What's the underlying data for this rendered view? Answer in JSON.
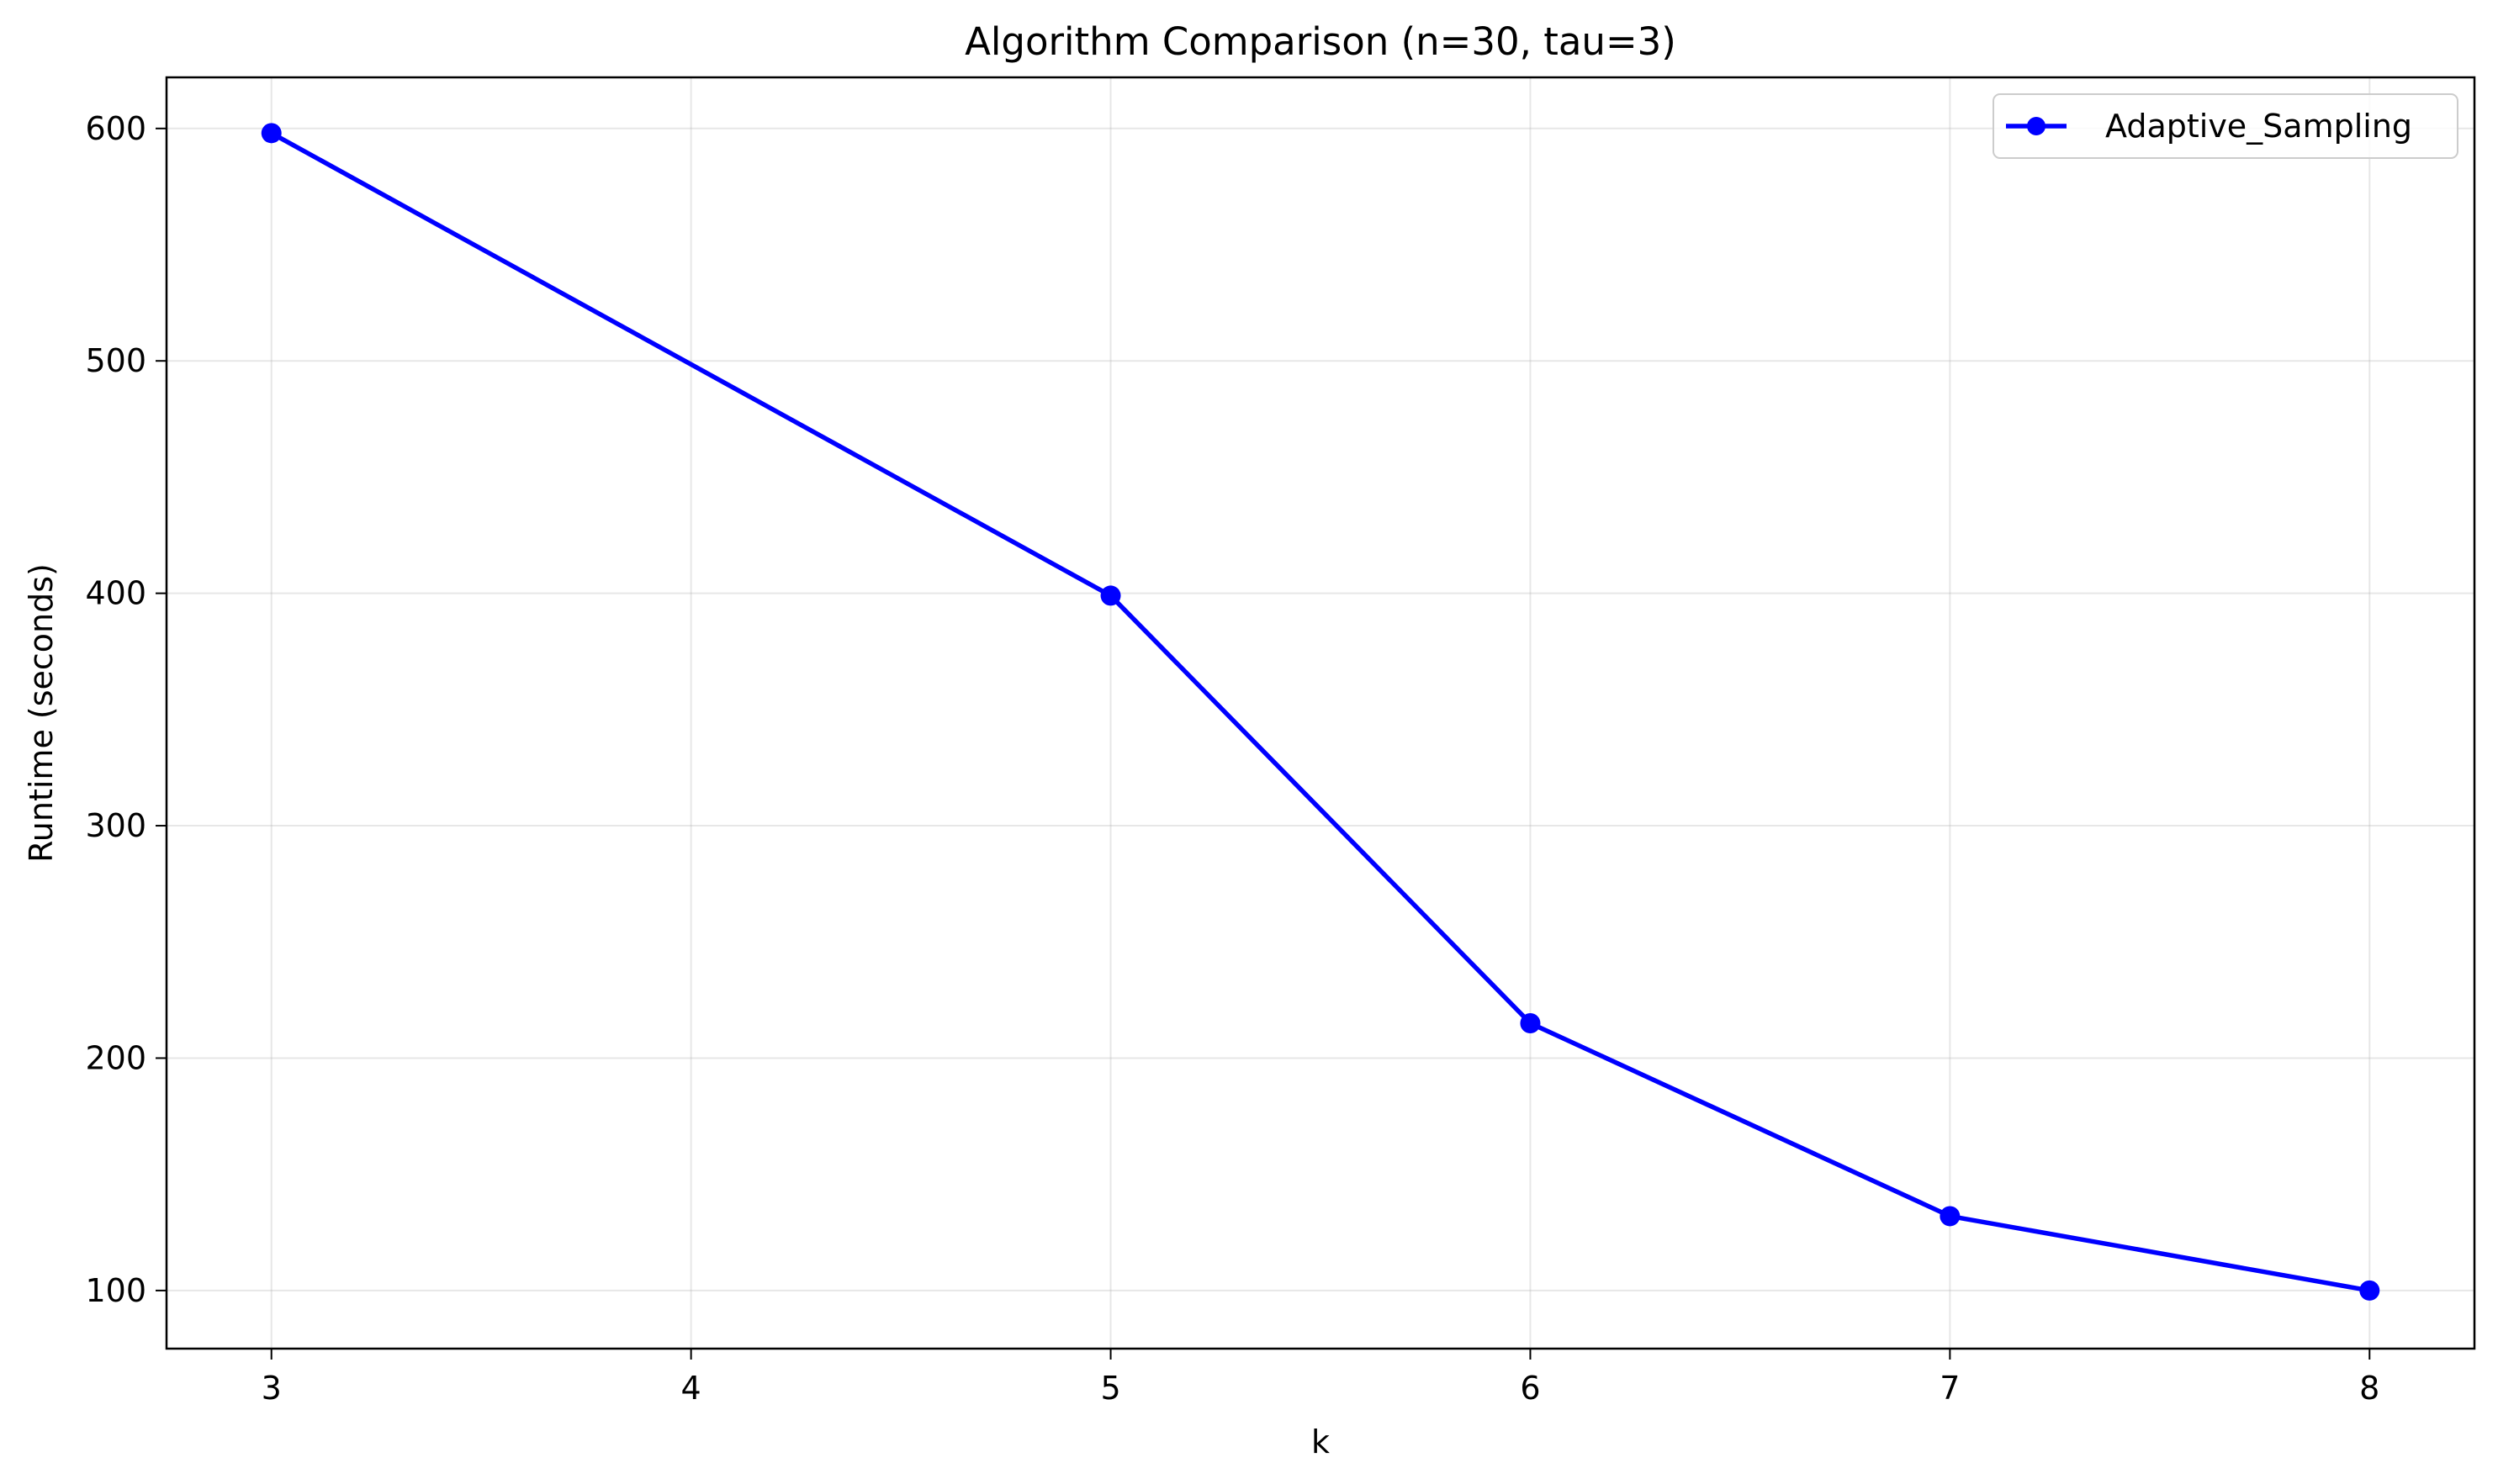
{
  "chart_data": {
    "type": "line",
    "title": "Algorithm Comparison (n=30, tau=3)",
    "xlabel": "k",
    "ylabel": "Runtime (seconds)",
    "x_ticks": [
      "3",
      "4",
      "5",
      "6",
      "7",
      "8"
    ],
    "y_ticks": [
      "100",
      "200",
      "300",
      "400",
      "500",
      "600"
    ],
    "xlim": [
      2.75,
      8.25
    ],
    "ylim": [
      75,
      622
    ],
    "grid": true,
    "legend_position": "top-right",
    "series": [
      {
        "name": "Adaptive_Sampling",
        "color": "#0000ff",
        "marker": "circle",
        "x": [
          3,
          5,
          6,
          7,
          8
        ],
        "y": [
          598,
          399,
          215,
          132,
          100
        ]
      }
    ]
  }
}
